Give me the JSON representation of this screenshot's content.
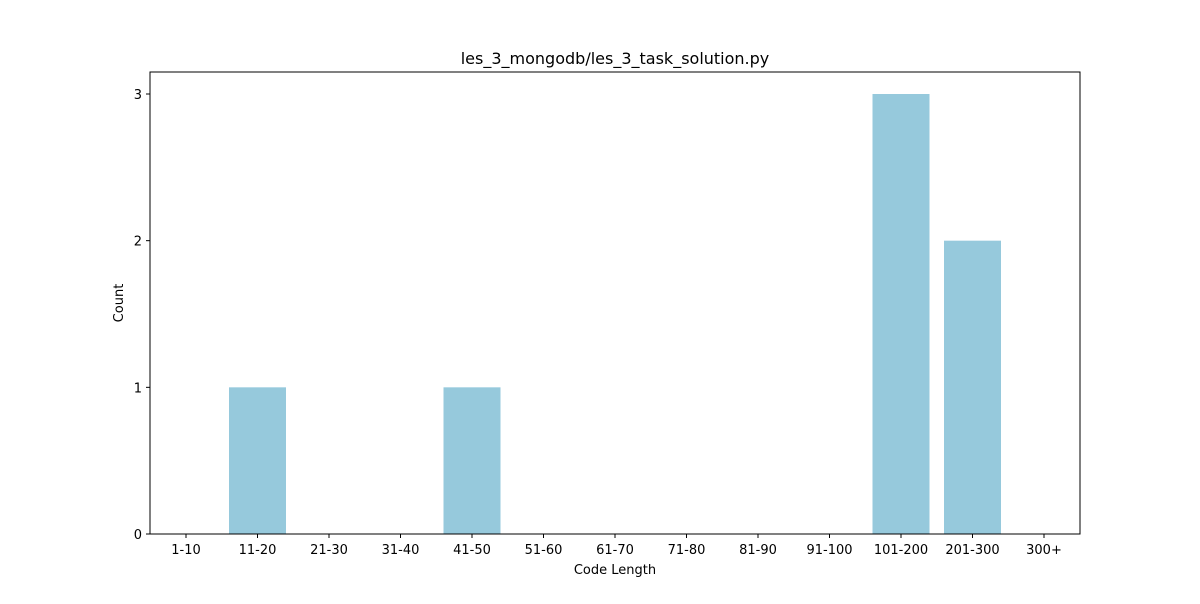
{
  "chart_data": {
    "type": "bar",
    "title": "les_3_mongodb/les_3_task_solution.py",
    "xlabel": "Code Length",
    "ylabel": "Count",
    "categories": [
      "1-10",
      "11-20",
      "21-30",
      "31-40",
      "41-50",
      "51-60",
      "61-70",
      "71-80",
      "81-90",
      "91-100",
      "101-200",
      "201-300",
      "300+"
    ],
    "values": [
      0,
      1,
      0,
      0,
      1,
      0,
      0,
      0,
      0,
      0,
      3,
      2,
      0
    ],
    "ylim": [
      0,
      3.15
    ],
    "yticks": [
      "0",
      "1",
      "2",
      "3"
    ],
    "bar_color": "#96c9dc",
    "grid": false,
    "legend": "none"
  }
}
